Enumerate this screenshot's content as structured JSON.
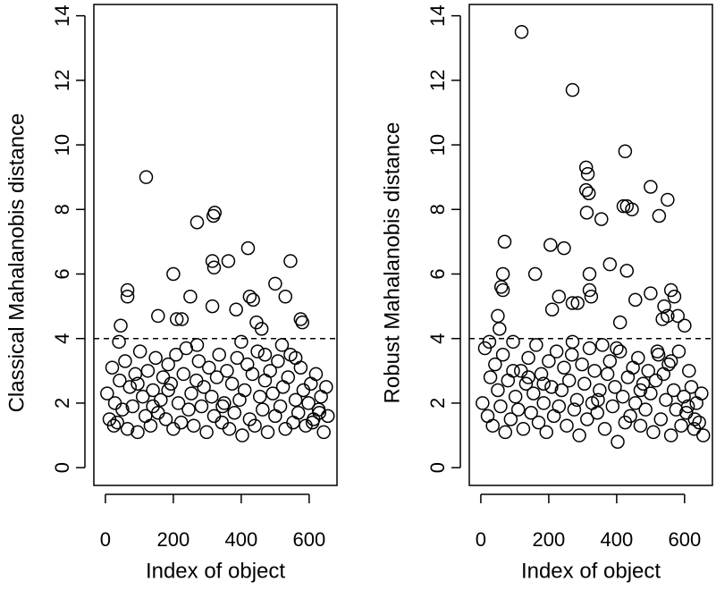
{
  "chart_data": [
    {
      "type": "scatter",
      "xlabel": "Index of object",
      "ylabel": "Classical Mahalanobis distance",
      "xlim": [
        -34,
        682
      ],
      "ylim": [
        -0.55,
        14.35
      ],
      "xticks": [
        0,
        200,
        400,
        600
      ],
      "yticks": [
        0,
        2,
        4,
        6,
        8,
        10,
        12,
        14
      ],
      "hline": 4,
      "color": "#000000",
      "x": [
        5,
        12,
        20,
        28,
        35,
        42,
        50,
        58,
        65,
        72,
        80,
        88,
        95,
        102,
        110,
        118,
        125,
        133,
        140,
        148,
        155,
        163,
        170,
        178,
        185,
        193,
        200,
        208,
        215,
        223,
        230,
        238,
        245,
        253,
        260,
        268,
        275,
        283,
        290,
        298,
        305,
        313,
        320,
        328,
        335,
        343,
        350,
        358,
        365,
        373,
        380,
        388,
        395,
        403,
        410,
        418,
        425,
        433,
        440,
        448,
        455,
        463,
        470,
        478,
        485,
        493,
        500,
        508,
        515,
        523,
        530,
        538,
        545,
        553,
        560,
        568,
        575,
        583,
        590,
        598,
        605,
        613,
        620,
        628,
        635,
        643,
        650,
        655,
        25,
        140,
        270,
        400,
        520,
        610,
        185,
        345,
        95,
        470,
        560,
        630,
        120,
        270,
        318,
        322,
        315,
        320,
        362,
        420,
        545,
        200,
        65,
        65,
        250,
        425,
        435,
        500,
        530,
        45,
        155,
        210,
        225,
        315,
        385,
        575,
        580,
        445,
        460,
        40
      ],
      "values": [
        2.3,
        1.5,
        3.1,
        2.0,
        1.4,
        2.7,
        1.8,
        3.3,
        1.2,
        2.5,
        1.9,
        2.9,
        1.1,
        3.6,
        2.2,
        1.6,
        3.0,
        1.3,
        2.4,
        3.4,
        1.7,
        2.1,
        2.8,
        1.5,
        3.2,
        2.6,
        1.2,
        3.5,
        2.0,
        1.4,
        2.9,
        3.7,
        1.8,
        2.3,
        1.3,
        2.7,
        3.3,
        1.9,
        2.5,
        1.1,
        3.1,
        2.2,
        1.6,
        2.8,
        3.5,
        1.4,
        2.0,
        3.0,
        1.2,
        2.6,
        1.7,
        3.4,
        2.1,
        1.0,
        2.4,
        3.2,
        1.5,
        2.9,
        1.3,
        3.6,
        2.2,
        1.8,
        2.7,
        1.1,
        3.0,
        2.3,
        1.6,
        3.3,
        1.9,
        2.5,
        1.2,
        2.8,
        3.5,
        1.4,
        2.1,
        1.7,
        3.1,
        2.4,
        1.3,
        2.0,
        2.6,
        1.5,
        2.9,
        1.8,
        2.2,
        1.1,
        2.5,
        1.6,
        1.3,
        1.9,
        3.8,
        3.9,
        3.8,
        1.4,
        2.4,
        1.9,
        2.6,
        3.5,
        3.4,
        1.7,
        9.0,
        7.6,
        7.8,
        7.9,
        6.4,
        6.2,
        6.4,
        6.8,
        6.4,
        6.0,
        5.5,
        5.3,
        5.3,
        5.3,
        5.2,
        5.7,
        5.3,
        4.4,
        4.7,
        4.6,
        4.6,
        5.0,
        4.9,
        4.6,
        4.5,
        4.5,
        4.3,
        3.9
      ]
    },
    {
      "type": "scatter",
      "xlabel": "Index of object",
      "ylabel": "Robust Mahalanobis distance",
      "xlim": [
        -34,
        682
      ],
      "ylim": [
        -0.55,
        14.35
      ],
      "xticks": [
        0,
        200,
        400,
        600
      ],
      "yticks": [
        0,
        2,
        4,
        6,
        8,
        10,
        12,
        14
      ],
      "hline": 4,
      "color": "#000000",
      "x": [
        5,
        12,
        20,
        28,
        35,
        42,
        50,
        58,
        65,
        72,
        80,
        88,
        95,
        102,
        110,
        118,
        125,
        133,
        140,
        148,
        155,
        163,
        170,
        178,
        185,
        193,
        200,
        208,
        215,
        223,
        230,
        238,
        245,
        253,
        260,
        268,
        275,
        283,
        290,
        298,
        305,
        313,
        320,
        328,
        335,
        343,
        350,
        358,
        365,
        373,
        380,
        388,
        395,
        403,
        410,
        418,
        425,
        433,
        440,
        448,
        455,
        463,
        470,
        478,
        485,
        493,
        500,
        508,
        515,
        523,
        530,
        538,
        545,
        553,
        560,
        568,
        575,
        583,
        590,
        598,
        605,
        613,
        620,
        628,
        635,
        643,
        650,
        655,
        25,
        140,
        270,
        400,
        520,
        610,
        185,
        345,
        95,
        470,
        560,
        630,
        120,
        270,
        425,
        310,
        315,
        310,
        318,
        500,
        550,
        420,
        430,
        445,
        312,
        355,
        525,
        70,
        205,
        245,
        380,
        430,
        160,
        320,
        65,
        60,
        65,
        320,
        560,
        570,
        500,
        210,
        230,
        270,
        285,
        325,
        540,
        455,
        410,
        50,
        55,
        550,
        535,
        580,
        600
      ],
      "values": [
        2.0,
        3.7,
        1.6,
        2.8,
        1.3,
        3.2,
        2.4,
        1.9,
        3.5,
        1.1,
        2.7,
        1.5,
        3.9,
        2.2,
        1.8,
        3.0,
        1.2,
        2.6,
        3.4,
        1.7,
        2.3,
        3.8,
        1.4,
        2.9,
        2.0,
        1.1,
        3.3,
        2.5,
        1.6,
        3.6,
        1.9,
        2.4,
        3.1,
        1.3,
        2.7,
        3.5,
        1.8,
        2.1,
        1.0,
        3.2,
        2.6,
        1.5,
        3.7,
        2.0,
        3.0,
        1.7,
        2.4,
        3.8,
        1.2,
        2.9,
        3.3,
        1.9,
        2.5,
        0.8,
        3.6,
        2.2,
        1.4,
        2.8,
        1.6,
        3.1,
        2.0,
        3.4,
        1.3,
        2.6,
        1.8,
        3.0,
        2.3,
        1.1,
        2.7,
        3.5,
        1.5,
        2.9,
        2.1,
        3.2,
        1.0,
        2.4,
        1.8,
        3.6,
        1.3,
        2.2,
        1.7,
        3.0,
        2.5,
        1.2,
        2.0,
        1.4,
        2.3,
        1.0,
        3.9,
        2.8,
        3.9,
        3.7,
        3.6,
        1.9,
        2.6,
        2.1,
        3.0,
        2.4,
        3.3,
        1.5,
        13.5,
        11.7,
        9.8,
        9.3,
        9.1,
        8.6,
        8.5,
        8.7,
        8.3,
        8.1,
        8.1,
        8.0,
        7.9,
        7.7,
        7.8,
        7.0,
        6.9,
        6.8,
        6.3,
        6.1,
        6.0,
        6.0,
        6.0,
        5.6,
        5.5,
        5.5,
        5.5,
        5.3,
        5.4,
        4.9,
        5.3,
        5.1,
        5.1,
        5.3,
        5.0,
        5.2,
        4.5,
        4.7,
        4.3,
        4.7,
        4.6,
        4.7,
        4.4
      ]
    }
  ]
}
